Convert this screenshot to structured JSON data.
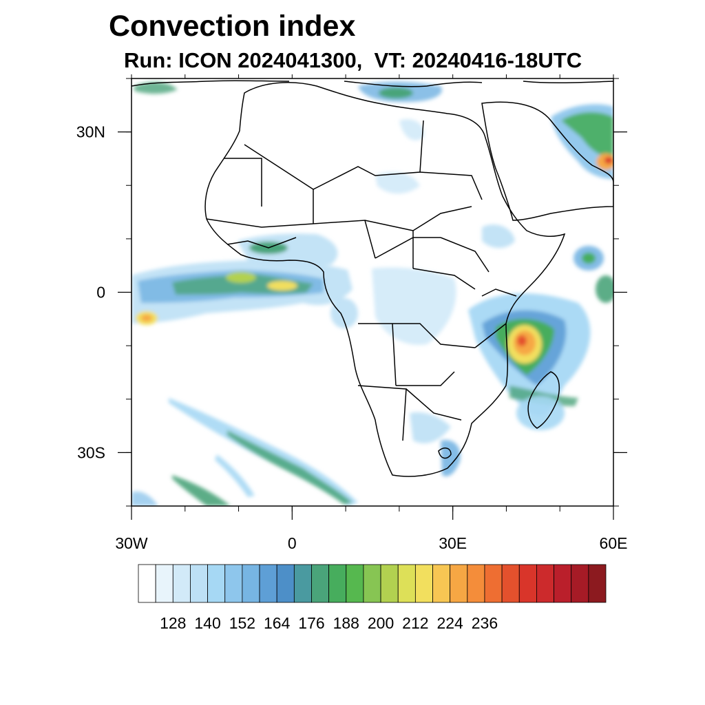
{
  "title": "Convection index",
  "subtitle": "Run: ICON 2024041300,  VT: 20240416-18UTC",
  "map": {
    "region": "Africa",
    "lon_range": [
      -30,
      60
    ],
    "lat_range": [
      -40,
      40
    ],
    "x_ticks": [
      {
        "value": -30,
        "label": "30W"
      },
      {
        "value": 0,
        "label": "0"
      },
      {
        "value": 30,
        "label": "30E"
      },
      {
        "value": 60,
        "label": "60E"
      }
    ],
    "y_ticks": [
      {
        "value": 30,
        "label": "30N"
      },
      {
        "value": 0,
        "label": "0"
      },
      {
        "value": -30,
        "label": "30S"
      }
    ]
  },
  "colorbar": {
    "labels": [
      "128",
      "140",
      "152",
      "164",
      "176",
      "188",
      "200",
      "212",
      "224",
      "236"
    ],
    "colors": [
      "#ffffff",
      "#e8f4fb",
      "#d2eaf8",
      "#bde0f5",
      "#a6d8f4",
      "#8ec6ec",
      "#77b5e3",
      "#5e9fd6",
      "#4d8fc8",
      "#4a9aa0",
      "#4aa47a",
      "#47ad5d",
      "#56b84f",
      "#87c553",
      "#b2d150",
      "#dde058",
      "#f2df5e",
      "#f7c653",
      "#f6a744",
      "#f48d3a",
      "#ee6e32",
      "#e4512d",
      "#d9352a",
      "#cc2a2c",
      "#ba1f2b",
      "#a61b26",
      "#8c1a1f"
    ]
  }
}
